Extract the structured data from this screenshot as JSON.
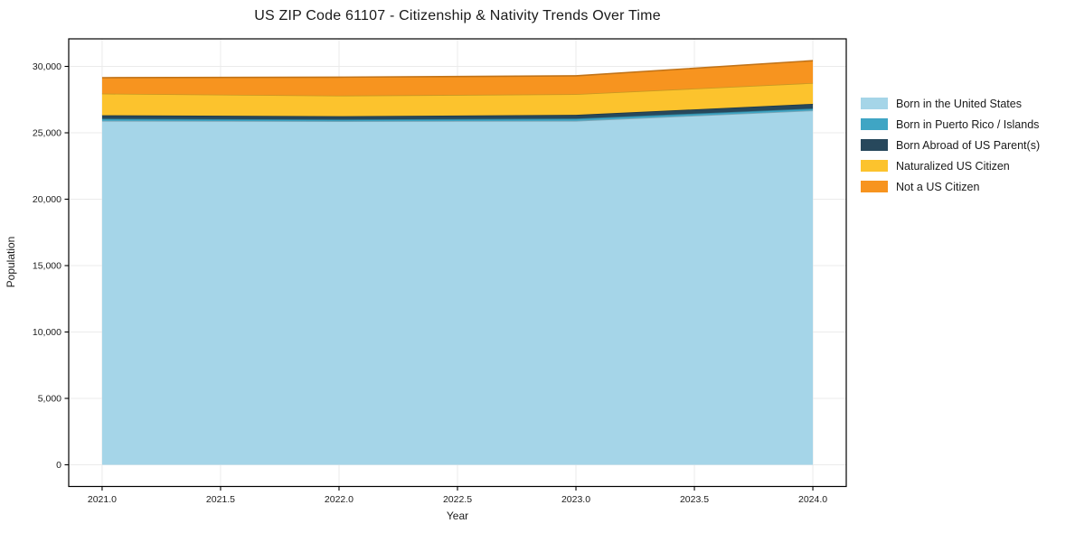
{
  "chart": {
    "title": "US ZIP Code 61107 - Citizenship & Nativity Trends Over Time",
    "xlabel": "Year",
    "ylabel": "Population"
  },
  "chart_data": {
    "type": "area",
    "stacked": true,
    "title": "US ZIP Code 61107 - Citizenship & Nativity Trends Over Time",
    "xlabel": "Year",
    "ylabel": "Population",
    "x": [
      2021,
      2022,
      2023,
      2024
    ],
    "series": [
      {
        "name": "Born in the United States",
        "color": "#a5d5e8",
        "values": [
          25900,
          25870,
          25900,
          26680
        ]
      },
      {
        "name": "Born in Puerto Rico / Islands",
        "color": "#3fa5c4",
        "values": [
          160,
          130,
          170,
          150
        ]
      },
      {
        "name": "Born Abroad of US Parent(s)",
        "color": "#27485c",
        "values": [
          260,
          250,
          280,
          350
        ]
      },
      {
        "name": "Naturalized US Citizen",
        "color": "#fcc32d",
        "values": [
          1630,
          1550,
          1560,
          1570
        ]
      },
      {
        "name": "Not a US Citizen",
        "color": "#f7941f",
        "values": [
          1200,
          1390,
          1380,
          1680
        ]
      }
    ],
    "x_ticks": [
      "2021.0",
      "2021.5",
      "2022.0",
      "2022.5",
      "2023.0",
      "2023.5",
      "2024.0"
    ],
    "x_tick_values": [
      2021,
      2021.5,
      2022,
      2022.5,
      2023,
      2023.5,
      2024
    ],
    "y_ticks": [
      "0",
      "5,000",
      "10,000",
      "15,000",
      "20,000",
      "25,000",
      "30,000"
    ],
    "y_tick_values": [
      0,
      5000,
      10000,
      15000,
      20000,
      25000,
      30000
    ],
    "xlim": [
      2020.859,
      2024.141
    ],
    "ylim": [
      -1633,
      32075
    ],
    "grid": true,
    "legend_position": "right of axes, no frame",
    "text_color": "#1c1c1c",
    "grid_color": "#ebebeb",
    "spine_color": "#000000"
  }
}
